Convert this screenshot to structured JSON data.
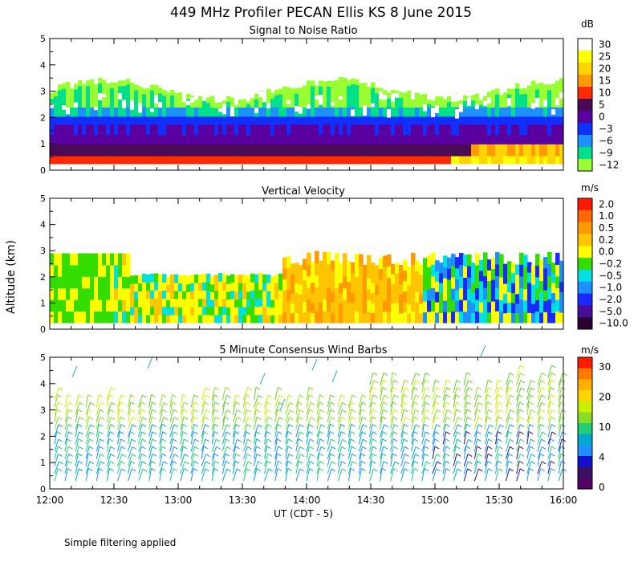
{
  "title": "449 MHz Profiler PECAN Ellis KS  8 June 2015",
  "shared_ylabel": "Altitude (km)",
  "footnote": "Simple filtering applied",
  "chart_data": [
    {
      "type": "heatmap",
      "title": "Signal to Noise Ratio",
      "xlabel": "",
      "ylabel": "Altitude (km)",
      "x_ticks": [
        "12:00",
        "12:30",
        "13:00",
        "13:30",
        "14:00",
        "14:30",
        "15:00",
        "15:30",
        "16:00"
      ],
      "y_ticks": [
        "0",
        "1",
        "2",
        "3",
        "4",
        "5"
      ],
      "xlim": [
        "12:00",
        "16:00"
      ],
      "ylim": [
        0,
        5
      ],
      "colorbar": {
        "unit": "dB",
        "labels": [
          "30",
          "25",
          "20",
          "15",
          "10",
          "5",
          "0",
          "−3",
          "−6",
          "−9",
          "−12"
        ],
        "colors": [
          "#ffffff",
          "#ffff00",
          "#ffd400",
          "#ff9a00",
          "#ff2a00",
          "#4a0a55",
          "#5b00a0",
          "#1030ff",
          "#1e90ff",
          "#00e08a",
          "#99ff33"
        ]
      },
      "bands_description_km": [
        {
          "from": 0.25,
          "to": 0.55,
          "value_db": 10
        },
        {
          "from": 0.55,
          "to": 1.0,
          "value_db": 5
        },
        {
          "from": 1.0,
          "to": 1.5,
          "value_db": 0
        },
        {
          "from": 1.5,
          "to": 2.0,
          "value_db": -3
        },
        {
          "from": 2.0,
          "to": 3.2,
          "value_db": -9
        }
      ]
    },
    {
      "type": "heatmap",
      "title": "Vertical Velocity",
      "xlabel": "",
      "ylabel": "Altitude (km)",
      "x_ticks": [
        "12:00",
        "12:30",
        "13:00",
        "13:30",
        "14:00",
        "14:30",
        "15:00",
        "15:30",
        "16:00"
      ],
      "y_ticks": [
        "0",
        "1",
        "2",
        "3",
        "4",
        "5"
      ],
      "xlim": [
        "12:00",
        "16:00"
      ],
      "ylim": [
        0,
        5
      ],
      "colorbar": {
        "unit": "m/s",
        "labels": [
          "2.0",
          "1.0",
          "0.5",
          "0.2",
          "0.0",
          "−0.2",
          "−0.5",
          "−1.0",
          "−2.0",
          "−5.0",
          "−10.0"
        ],
        "colors": [
          "#ff1a00",
          "#ff6a00",
          "#ff9a00",
          "#ffc400",
          "#ffff00",
          "#33dd00",
          "#00e0e0",
          "#1e90ff",
          "#1a2aff",
          "#4a0a9a",
          "#2a0030"
        ]
      }
    },
    {
      "type": "scatter",
      "title": "5 Minute Consensus Wind Barbs",
      "xlabel": "UT  (CDT - 5)",
      "ylabel": "Altitude (km)",
      "x_ticks": [
        "12:00",
        "12:30",
        "13:00",
        "13:30",
        "14:00",
        "14:30",
        "15:00",
        "15:30",
        "16:00"
      ],
      "y_ticks": [
        "0",
        "1",
        "2",
        "3",
        "4",
        "5"
      ],
      "xlim": [
        "12:00",
        "16:00"
      ],
      "ylim": [
        0,
        5
      ],
      "colorbar": {
        "unit": "m/s",
        "labels": [
          "30",
          "20",
          "10",
          "4",
          "0"
        ],
        "colors": [
          "#ff1a00",
          "#ff7a00",
          "#ffb000",
          "#ffd400",
          "#ccee00",
          "#88dd22",
          "#22cc77",
          "#00aacc",
          "#1e90ff",
          "#1010cc",
          "#3a1060",
          "#550066"
        ]
      },
      "wind_barbs": {
        "interval_minutes": 5,
        "altitude_range_km": [
          0.1,
          4.4
        ],
        "typical_speed_ms": 12
      }
    }
  ]
}
